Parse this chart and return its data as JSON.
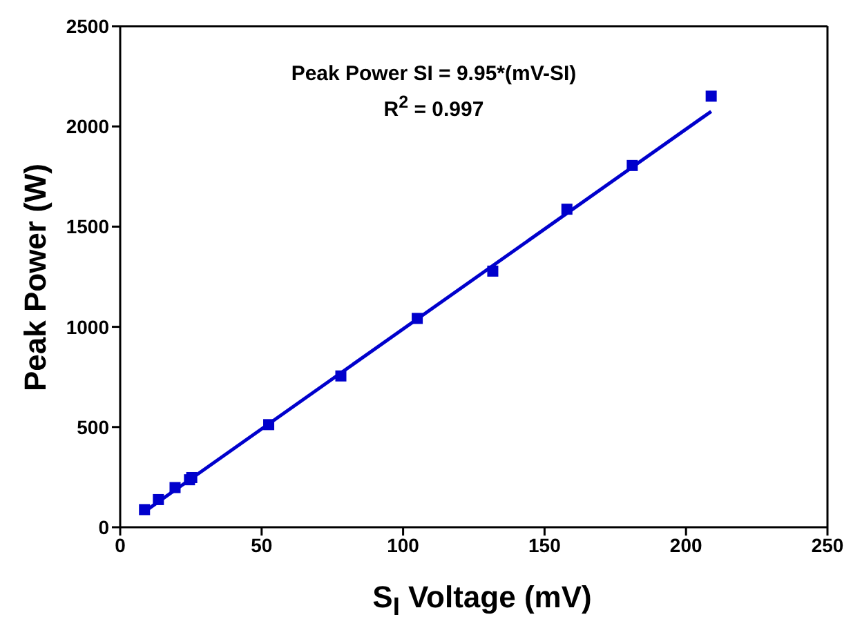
{
  "chart_data": {
    "type": "scatter",
    "xlabel": "S$_{I}$ Voltage (mV)",
    "ylabel": "Peak Power (W)",
    "annotations": [
      "Peak Power SI = 9.95*(mV-SI)",
      "R$^{2}$ = 0.997"
    ],
    "xlim": [
      0,
      250
    ],
    "ylim": [
      0,
      2500
    ],
    "xticks": [
      0,
      50,
      100,
      150,
      200,
      250
    ],
    "yticks": [
      0,
      500,
      1000,
      1500,
      2000,
      2500
    ],
    "grid": false,
    "legend": false,
    "marker": "square",
    "series": [
      {
        "color": "#0000cc",
        "x": [
          8.6,
          13.5,
          19.4,
          24.5,
          25.3,
          52.5,
          78,
          105,
          131.7,
          157.9,
          181,
          208.9
        ],
        "values": [
          88,
          138,
          198,
          237,
          248,
          512,
          755,
          1042,
          1278,
          1587,
          1805,
          2151
        ]
      },
      {
        "type": "line",
        "color": "#0000cc",
        "marker": "none",
        "line_style": "solid",
        "x": [
          8.6,
          208.9
        ],
        "values": [
          78,
          2075
        ]
      }
    ]
  }
}
